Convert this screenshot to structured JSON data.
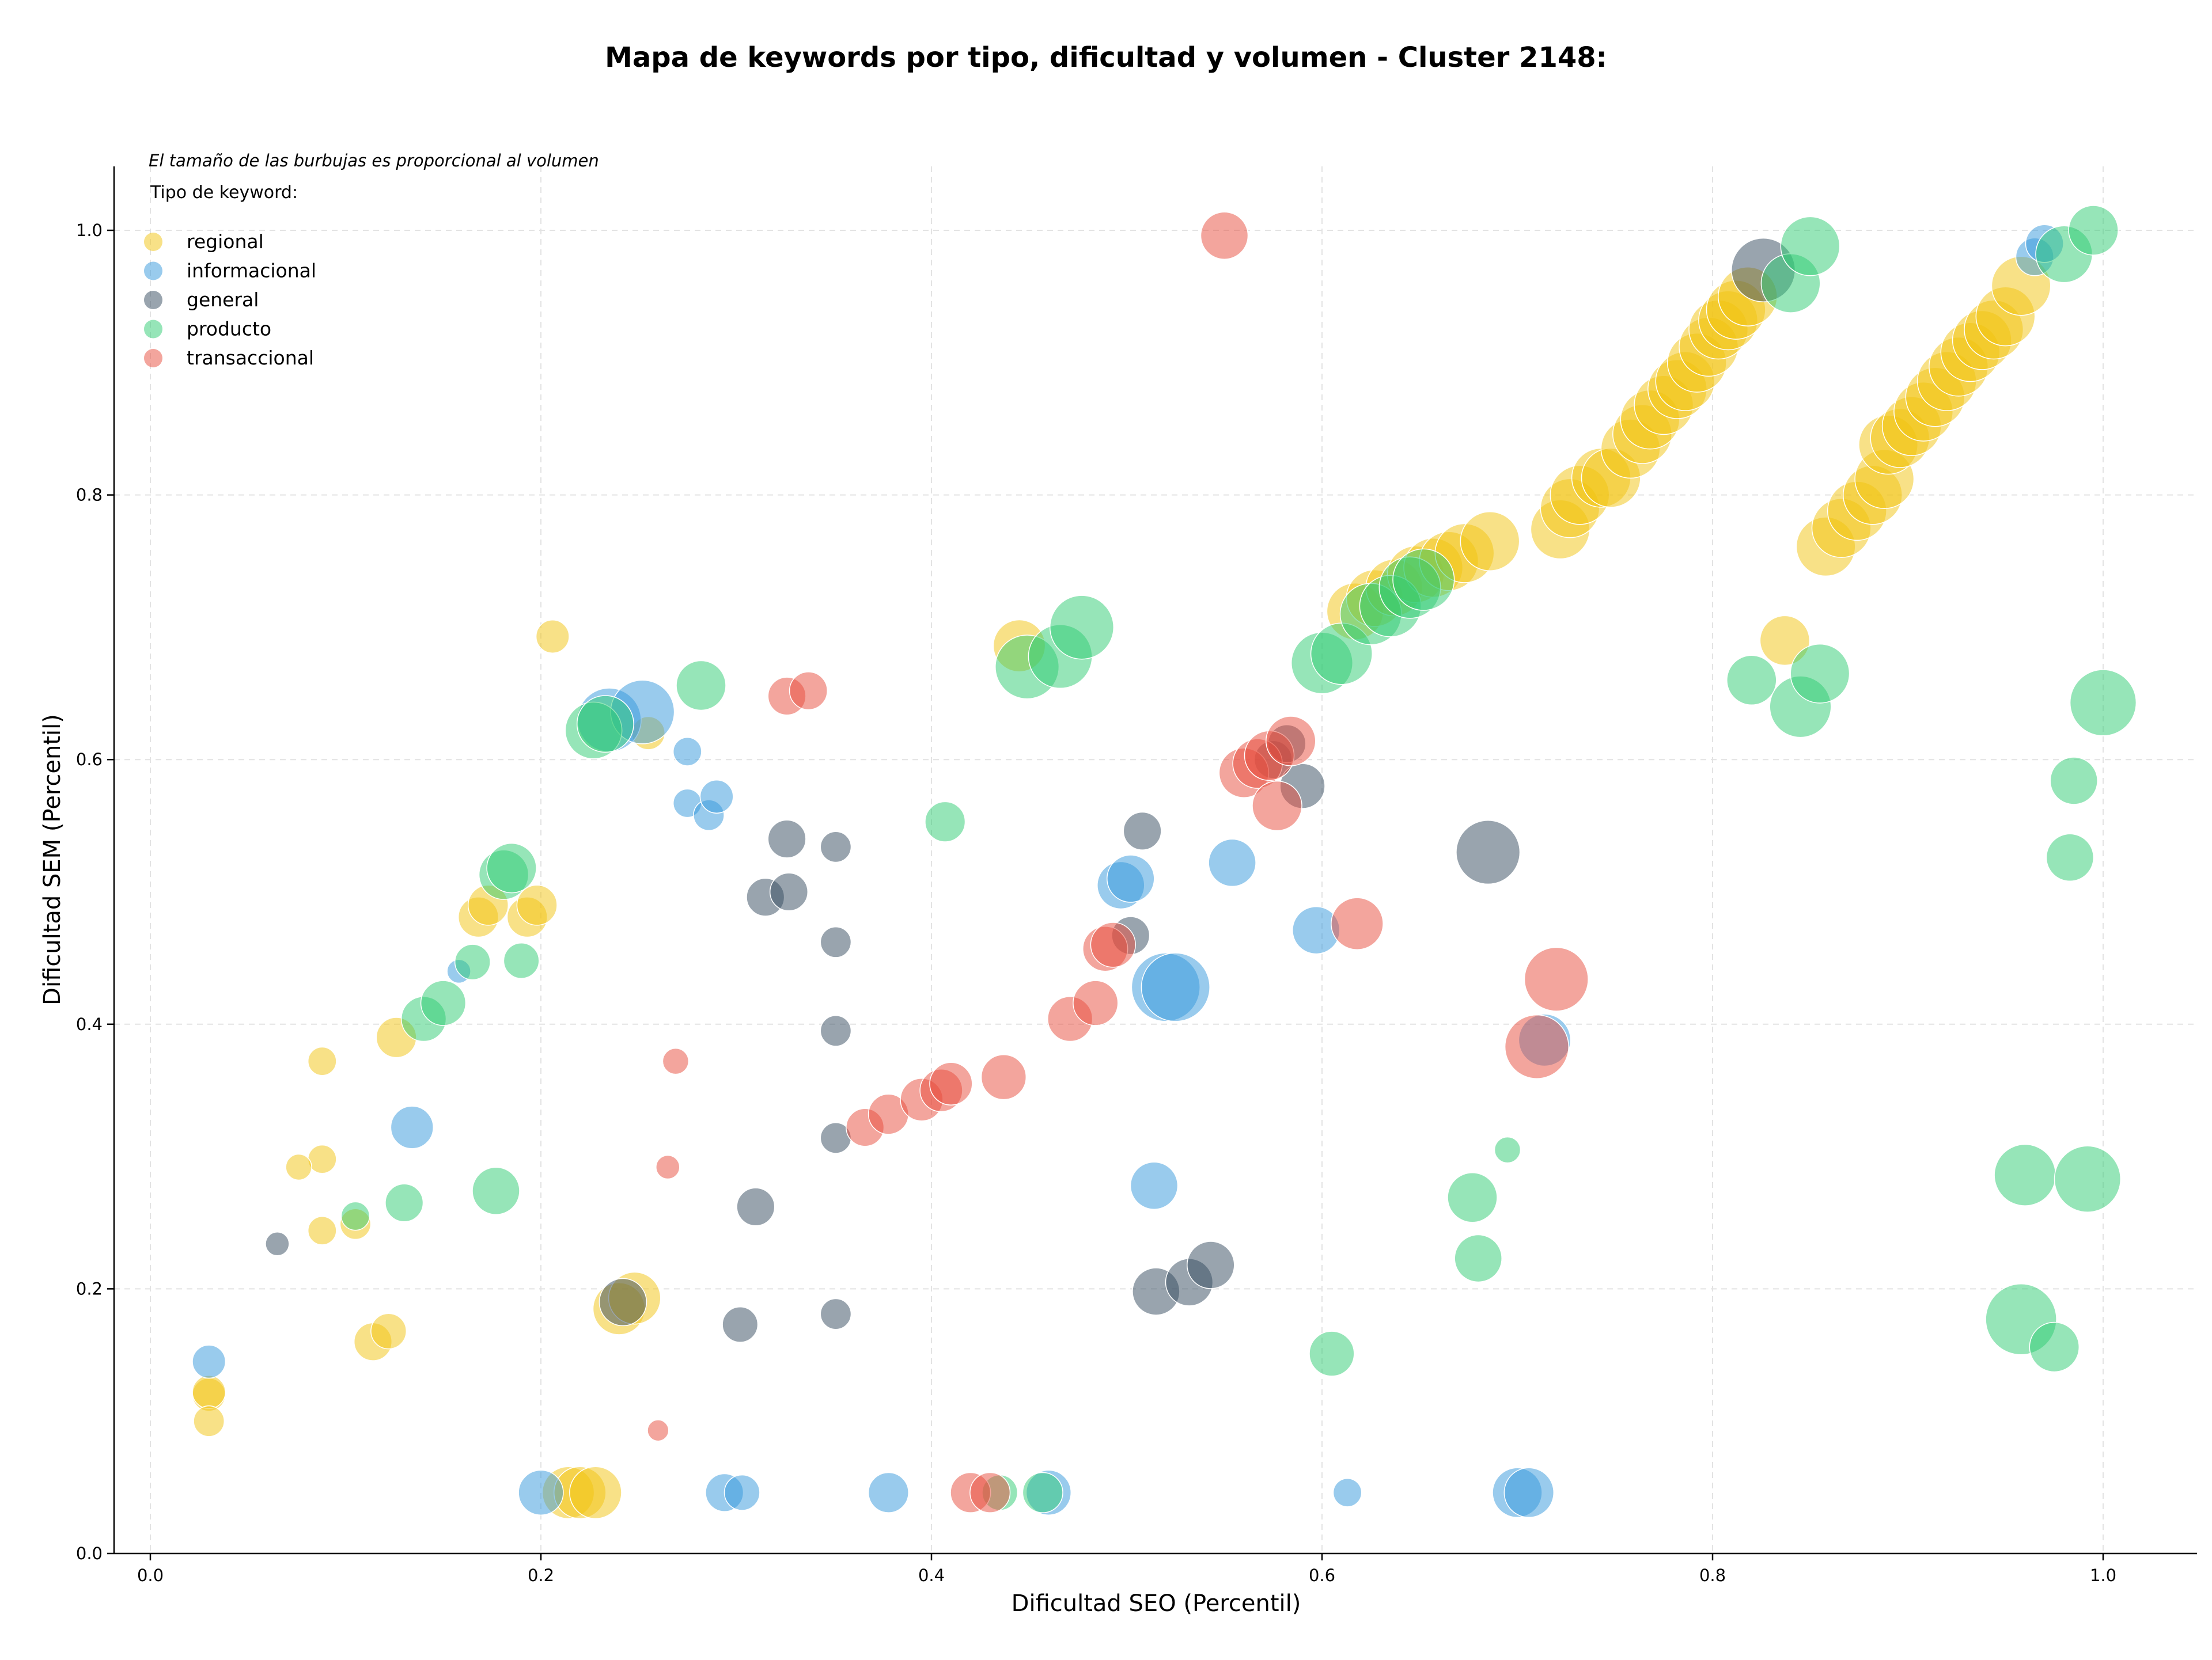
{
  "chart_data": {
    "type": "scatter",
    "title": "Mapa de keywords por tipo, dificultad y volumen - Cluster 2148:",
    "xlabel": "Dificultad SEO (Percentil)",
    "ylabel": "Dificultad SEM (Percentil)",
    "xlim": [
      -0.02,
      1.05
    ],
    "ylim": [
      0.0,
      1.05
    ],
    "xticks": [
      "0.0",
      "0.2",
      "0.4",
      "0.6",
      "0.8",
      "1.0"
    ],
    "yticks": [
      "0.0",
      "0.2",
      "0.4",
      "0.6",
      "0.8",
      "1.0"
    ],
    "grid": true,
    "legend_placement": "upper-left",
    "legend_note": "El tamaño de las burbujas es proporcional al volumen",
    "legend_title": "Tipo de keyword:",
    "series": [
      {
        "name": "regional",
        "color": "#f1c40f",
        "points": [
          [
            0.03,
            0.12,
            14
          ],
          [
            0.03,
            0.122,
            14
          ],
          [
            0.03,
            0.1,
            13
          ],
          [
            0.088,
            0.372,
            12
          ],
          [
            0.088,
            0.298,
            12
          ],
          [
            0.076,
            0.292,
            11
          ],
          [
            0.088,
            0.244,
            12
          ],
          [
            0.105,
            0.249,
            13
          ],
          [
            0.114,
            0.16,
            16
          ],
          [
            0.122,
            0.168,
            15
          ],
          [
            0.126,
            0.39,
            17
          ],
          [
            0.168,
            0.481,
            17
          ],
          [
            0.173,
            0.49,
            17
          ],
          [
            0.193,
            0.481,
            17
          ],
          [
            0.198,
            0.49,
            17
          ],
          [
            0.206,
            0.693,
            14
          ],
          [
            0.24,
            0.185,
            22
          ],
          [
            0.248,
            0.193,
            22
          ],
          [
            0.214,
            0.046,
            22
          ],
          [
            0.22,
            0.046,
            22
          ],
          [
            0.228,
            0.046,
            22
          ],
          [
            0.255,
            0.62,
            14
          ],
          [
            0.445,
            0.686,
            22
          ],
          [
            0.837,
            0.69,
            21
          ],
          [
            0.617,
            0.712,
            24
          ],
          [
            0.627,
            0.722,
            24
          ],
          [
            0.637,
            0.73,
            24
          ],
          [
            0.648,
            0.74,
            24
          ],
          [
            0.657,
            0.745,
            25
          ],
          [
            0.665,
            0.75,
            25
          ],
          [
            0.673,
            0.756,
            25
          ],
          [
            0.686,
            0.765,
            25
          ],
          [
            0.722,
            0.774,
            25
          ],
          [
            0.727,
            0.79,
            25
          ],
          [
            0.732,
            0.8,
            25
          ],
          [
            0.743,
            0.813,
            25
          ],
          [
            0.748,
            0.813,
            25
          ],
          [
            0.758,
            0.835,
            25
          ],
          [
            0.764,
            0.846,
            25
          ],
          [
            0.768,
            0.857,
            25
          ],
          [
            0.775,
            0.868,
            25
          ],
          [
            0.782,
            0.88,
            25
          ],
          [
            0.786,
            0.886,
            25
          ],
          [
            0.792,
            0.9,
            25
          ],
          [
            0.798,
            0.912,
            25
          ],
          [
            0.803,
            0.925,
            25
          ],
          [
            0.808,
            0.932,
            25
          ],
          [
            0.812,
            0.94,
            25
          ],
          [
            0.818,
            0.95,
            25
          ],
          [
            0.858,
            0.761,
            25
          ],
          [
            0.866,
            0.775,
            25
          ],
          [
            0.874,
            0.788,
            25
          ],
          [
            0.882,
            0.8,
            25
          ],
          [
            0.888,
            0.812,
            25
          ],
          [
            0.89,
            0.838,
            25
          ],
          [
            0.896,
            0.843,
            25
          ],
          [
            0.902,
            0.852,
            25
          ],
          [
            0.908,
            0.863,
            25
          ],
          [
            0.914,
            0.874,
            25
          ],
          [
            0.92,
            0.886,
            25
          ],
          [
            0.926,
            0.897,
            25
          ],
          [
            0.932,
            0.908,
            25
          ],
          [
            0.938,
            0.917,
            25
          ],
          [
            0.944,
            0.925,
            25
          ],
          [
            0.95,
            0.935,
            25
          ],
          [
            0.958,
            0.958,
            25
          ]
        ]
      },
      {
        "name": "informacional",
        "color": "#3498db",
        "points": [
          [
            0.03,
            0.145,
            14
          ],
          [
            0.158,
            0.44,
            10
          ],
          [
            0.134,
            0.322,
            18
          ],
          [
            0.2,
            0.046,
            19
          ],
          [
            0.235,
            0.63,
            27
          ],
          [
            0.252,
            0.636,
            27
          ],
          [
            0.275,
            0.606,
            12
          ],
          [
            0.275,
            0.567,
            12
          ],
          [
            0.286,
            0.558,
            13
          ],
          [
            0.29,
            0.572,
            14
          ],
          [
            0.294,
            0.046,
            16
          ],
          [
            0.303,
            0.046,
            15
          ],
          [
            0.378,
            0.046,
            17
          ],
          [
            0.46,
            0.046,
            19
          ],
          [
            0.497,
            0.505,
            20
          ],
          [
            0.502,
            0.51,
            20
          ],
          [
            0.514,
            0.278,
            20
          ],
          [
            0.52,
            0.428,
            29
          ],
          [
            0.525,
            0.428,
            29
          ],
          [
            0.554,
            0.522,
            20
          ],
          [
            0.597,
            0.471,
            20
          ],
          [
            0.613,
            0.046,
            12
          ],
          [
            0.7,
            0.046,
            21
          ],
          [
            0.706,
            0.046,
            21
          ],
          [
            0.714,
            0.388,
            22
          ],
          [
            0.965,
            0.98,
            16
          ],
          [
            0.97,
            0.99,
            16
          ]
        ]
      },
      {
        "name": "general",
        "color": "#34495e",
        "points": [
          [
            0.065,
            0.234,
            10
          ],
          [
            0.242,
            0.19,
            20
          ],
          [
            0.302,
            0.173,
            15
          ],
          [
            0.31,
            0.262,
            16
          ],
          [
            0.315,
            0.496,
            16
          ],
          [
            0.326,
            0.54,
            16
          ],
          [
            0.327,
            0.5,
            16
          ],
          [
            0.351,
            0.534,
            13
          ],
          [
            0.351,
            0.462,
            13
          ],
          [
            0.351,
            0.395,
            13
          ],
          [
            0.351,
            0.314,
            13
          ],
          [
            0.351,
            0.181,
            13
          ],
          [
            0.502,
            0.467,
            16
          ],
          [
            0.508,
            0.546,
            16
          ],
          [
            0.515,
            0.198,
            20
          ],
          [
            0.532,
            0.205,
            20
          ],
          [
            0.543,
            0.218,
            20
          ],
          [
            0.575,
            0.6,
            16
          ],
          [
            0.582,
            0.612,
            16
          ],
          [
            0.59,
            0.58,
            19
          ],
          [
            0.685,
            0.53,
            27
          ],
          [
            0.826,
            0.97,
            27
          ]
        ]
      },
      {
        "name": "producto",
        "color": "#2ecc71",
        "points": [
          [
            0.105,
            0.255,
            12
          ],
          [
            0.13,
            0.265,
            16
          ],
          [
            0.14,
            0.404,
            19
          ],
          [
            0.15,
            0.416,
            19
          ],
          [
            0.165,
            0.447,
            15
          ],
          [
            0.177,
            0.274,
            20
          ],
          [
            0.181,
            0.513,
            21
          ],
          [
            0.185,
            0.518,
            21
          ],
          [
            0.19,
            0.448,
            15
          ],
          [
            0.227,
            0.622,
            24
          ],
          [
            0.233,
            0.627,
            24
          ],
          [
            0.282,
            0.656,
            21
          ],
          [
            0.407,
            0.553,
            17
          ],
          [
            0.435,
            0.046,
            15
          ],
          [
            0.457,
            0.046,
            17
          ],
          [
            0.449,
            0.67,
            27
          ],
          [
            0.466,
            0.678,
            27
          ],
          [
            0.477,
            0.7,
            27
          ],
          [
            0.605,
            0.151,
            19
          ],
          [
            0.6,
            0.673,
            26
          ],
          [
            0.61,
            0.68,
            26
          ],
          [
            0.625,
            0.71,
            26
          ],
          [
            0.635,
            0.716,
            26
          ],
          [
            0.645,
            0.73,
            26
          ],
          [
            0.652,
            0.736,
            26
          ],
          [
            0.677,
            0.269,
            21
          ],
          [
            0.68,
            0.223,
            20
          ],
          [
            0.695,
            0.305,
            11
          ],
          [
            0.82,
            0.66,
            21
          ],
          [
            0.84,
            0.96,
            25
          ],
          [
            0.845,
            0.64,
            26
          ],
          [
            0.85,
            0.988,
            25
          ],
          [
            0.855,
            0.665,
            25
          ],
          [
            0.96,
            0.286,
            26
          ],
          [
            0.958,
            0.177,
            30
          ],
          [
            0.975,
            0.156,
            21
          ],
          [
            0.985,
            0.584,
            20
          ],
          [
            0.983,
            0.526,
            20
          ],
          [
            0.98,
            0.982,
            24
          ],
          [
            0.995,
            1.0,
            21
          ],
          [
            0.992,
            0.283,
            28
          ],
          [
            1.0,
            0.643,
            28
          ]
        ]
      },
      {
        "name": "transaccional",
        "color": "#e74c3c",
        "points": [
          [
            0.26,
            0.093,
            9
          ],
          [
            0.265,
            0.292,
            10
          ],
          [
            0.269,
            0.372,
            11
          ],
          [
            0.326,
            0.648,
            16
          ],
          [
            0.337,
            0.652,
            16
          ],
          [
            0.366,
            0.322,
            16
          ],
          [
            0.378,
            0.332,
            17
          ],
          [
            0.395,
            0.343,
            18
          ],
          [
            0.405,
            0.35,
            18
          ],
          [
            0.41,
            0.355,
            18
          ],
          [
            0.437,
            0.36,
            19
          ],
          [
            0.42,
            0.046,
            17
          ],
          [
            0.43,
            0.046,
            17
          ],
          [
            0.471,
            0.404,
            19
          ],
          [
            0.484,
            0.416,
            19
          ],
          [
            0.489,
            0.457,
            19
          ],
          [
            0.493,
            0.46,
            19
          ],
          [
            0.55,
            0.996,
            20
          ],
          [
            0.56,
            0.59,
            21
          ],
          [
            0.567,
            0.597,
            21
          ],
          [
            0.573,
            0.603,
            21
          ],
          [
            0.577,
            0.565,
            21
          ],
          [
            0.584,
            0.614,
            21
          ],
          [
            0.618,
            0.476,
            22
          ],
          [
            0.71,
            0.383,
            27
          ],
          [
            0.72,
            0.434,
            27
          ]
        ]
      }
    ]
  }
}
